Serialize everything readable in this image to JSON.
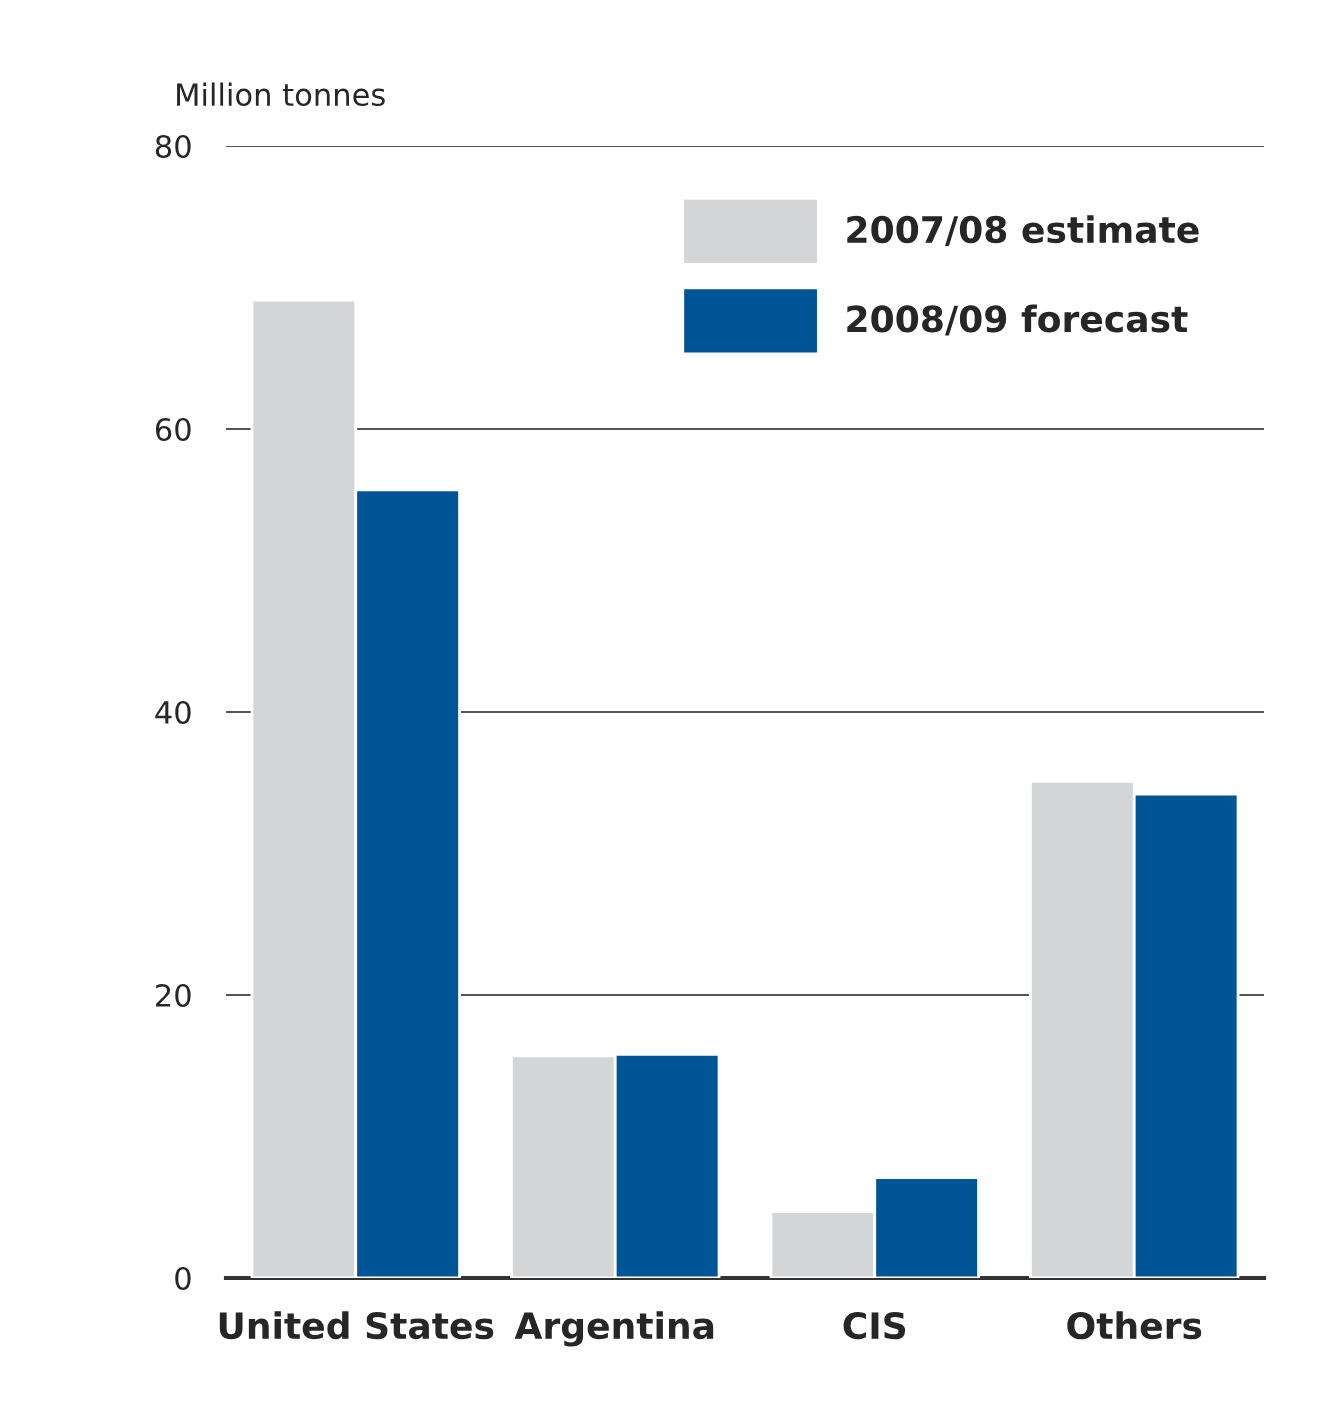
{
  "chart_data": {
    "type": "bar",
    "ylabel": "Million tonnes",
    "categories": [
      "United States",
      "Argentina",
      "CIS",
      "Others"
    ],
    "series": [
      {
        "name": "2007/08 estimate",
        "color": "#d4d5d7",
        "values": [
          69.1,
          15.7,
          4.7,
          35.1
        ]
      },
      {
        "name": "2008/09 forecast",
        "color": "#005596",
        "values": [
          55.7,
          15.8,
          7.1,
          34.2
        ]
      }
    ],
    "ylim": [
      0,
      80
    ],
    "yticks": [
      0,
      20,
      40,
      60,
      80
    ],
    "grid": "y",
    "legend": "top right"
  }
}
